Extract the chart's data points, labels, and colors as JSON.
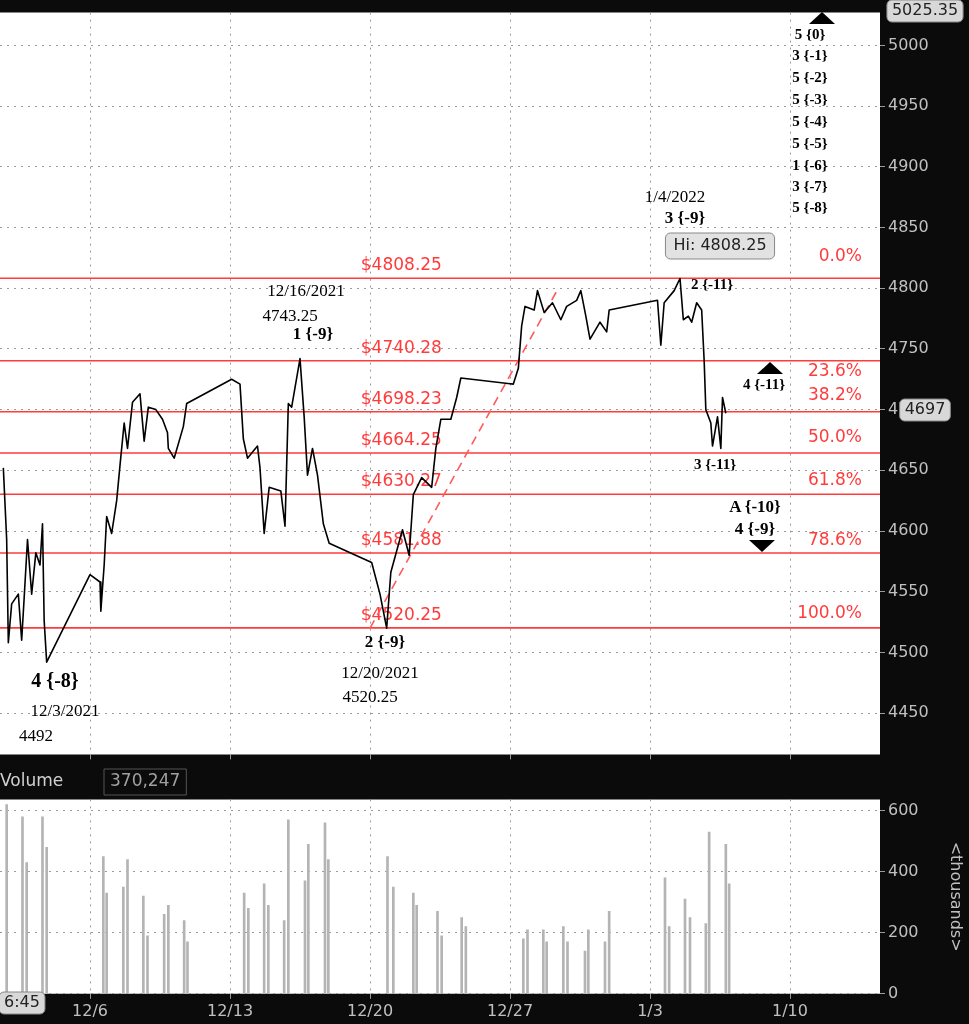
{
  "chart_data": [
    {
      "type": "line",
      "xlim": [
        "2021-12-01T12:00",
        "2022-01-14T12:00"
      ],
      "ylim": [
        4416,
        5027
      ],
      "grid": true,
      "legend": false,
      "tick_labels": "y",
      "xticks": [
        {
          "value": "2021-12-06",
          "label": null
        },
        {
          "value": "2021-12-13",
          "label": null
        },
        {
          "value": "2021-12-20",
          "label": null
        },
        {
          "value": "2021-12-27",
          "label": null
        },
        {
          "value": "2022-01-03",
          "label": null
        },
        {
          "value": "2022-01-10",
          "label": null
        }
      ],
      "yticks": [
        4450,
        4500,
        4550,
        4600,
        4650,
        4700,
        4750,
        4800,
        4850,
        4900,
        4950,
        5000
      ],
      "series": [
        {
          "type": "line",
          "color": "#000000",
          "x": [
            "2021-12-01T16:00",
            "2021-12-01T20:00",
            "2021-12-01T22:00",
            "2021-12-02T02:00",
            "2021-12-02T10:00",
            "2021-12-02T14:00",
            "2021-12-02T17:00",
            "2021-12-02T21:00",
            "2021-12-03T02:00",
            "2021-12-03T07:00",
            "2021-12-03T12:00",
            "2021-12-03T15:00",
            "2021-12-03T17:00",
            "2021-12-03T20:00",
            "2021-12-06T00:00",
            "2021-12-06T12:00",
            "2021-12-06T13:00",
            "2021-12-06T17:00",
            "2021-12-06T20:00",
            "2021-12-07T02:00",
            "2021-12-07T08:00",
            "2021-12-07T12:00",
            "2021-12-07T17:00",
            "2021-12-07T21:00",
            "2021-12-08T03:00",
            "2021-12-08T12:00",
            "2021-12-08T17:00",
            "2021-12-08T22:00",
            "2021-12-09T07:00",
            "2021-12-09T15:00",
            "2021-12-09T21:00",
            "2021-12-09T22:00",
            "2021-12-10T05:00",
            "2021-12-10T16:00",
            "2021-12-10T20:00",
            "2021-12-13T02:00",
            "2021-12-13T12:00",
            "2021-12-13T16:00",
            "2021-12-13T21:00",
            "2021-12-14T09:00",
            "2021-12-14T12:00",
            "2021-12-14T17:00",
            "2021-12-14T23:00",
            "2021-12-15T13:00",
            "2021-12-15T18:00",
            "2021-12-15T22:00",
            "2021-12-16T02:00",
            "2021-12-16T12:00",
            "2021-12-16T17:00",
            "2021-12-16T21:00",
            "2021-12-17T03:00",
            "2021-12-17T09:00",
            "2021-12-17T16:00",
            "2021-12-17T23:00",
            "2021-12-20T02:00",
            "2021-12-20T12:00",
            "2021-12-20T20:00",
            "2021-12-21T01:00",
            "2021-12-21T15:00",
            "2021-12-21T23:00",
            "2021-12-22T04:00",
            "2021-12-22T14:00",
            "2021-12-23T02:00",
            "2021-12-23T07:00",
            "2021-12-23T13:00",
            "2021-12-24T01:00",
            "2021-12-24T08:00",
            "2021-12-24T13:00",
            "2021-12-27T04:00",
            "2021-12-27T10:00",
            "2021-12-27T14:00",
            "2021-12-27T18:00",
            "2021-12-28T05:00",
            "2021-12-28T09:00",
            "2021-12-28T17:00",
            "2021-12-29T03:00",
            "2021-12-29T13:00",
            "2021-12-29T20:00",
            "2021-12-30T08:00",
            "2021-12-30T13:00",
            "2021-12-30T19:00",
            "2021-12-31T00:00",
            "2021-12-31T12:00",
            "2021-12-31T20:00",
            "2021-12-31T23:00",
            "2022-01-03T09:00",
            "2022-01-03T13:00",
            "2022-01-03T17:00",
            "2022-01-04T05:00",
            "2022-01-04T12:00",
            "2022-01-04T16:00",
            "2022-01-04T22:00",
            "2022-01-05T02:00",
            "2022-01-05T08:00",
            "2022-01-05T14:00",
            "2022-01-05T17:00",
            "2022-01-05T19:00",
            "2022-01-06T01:00",
            "2022-01-06T03:00",
            "2022-01-06T09:00",
            "2022-01-06T13:00",
            "2022-01-06T15:00",
            "2022-01-06T19:00"
          ],
          "values": [
            4652,
            4593,
            4508,
            4540,
            4548,
            4510,
            4545,
            4593,
            4548,
            4582,
            4572,
            4606,
            4526,
            4492,
            4564,
            4558,
            4534,
            4572,
            4612,
            4598,
            4625,
            4654,
            4689,
            4668,
            4706,
            4713,
            4674,
            4702,
            4700,
            4692,
            4681,
            4668,
            4660,
            4686,
            4705,
            4725,
            4721,
            4676,
            4660,
            4670,
            4652,
            4598,
            4636,
            4633,
            4604,
            4705,
            4702,
            4742,
            4694,
            4646,
            4668,
            4646,
            4606,
            4590,
            4574,
            4548,
            4520,
            4566,
            4601,
            4580,
            4630,
            4644,
            4636,
            4668,
            4692,
            4692,
            4710,
            4726,
            4721,
            4734,
            4769,
            4785,
            4782,
            4798,
            4780,
            4788,
            4774,
            4785,
            4790,
            4798,
            4777,
            4758,
            4772,
            4764,
            4782,
            4790,
            4753,
            4788,
            4798,
            4808,
            4774,
            4777,
            4772,
            4788,
            4782,
            4740,
            4700,
            4689,
            4670,
            4694,
            4668,
            4710,
            4697
          ]
        },
        {
          "type": "line",
          "color": "#ff5a5a",
          "line_style": "dashed",
          "x": [
            "2021-12-20T00:00",
            "2021-12-29T10:00"
          ],
          "values": [
            4520,
            4800
          ]
        }
      ],
      "ref_lines": [
        {
          "axis": "y",
          "value": 4808.25,
          "label": "$4808.25",
          "color": "#ff3b3b"
        },
        {
          "axis": "y",
          "value": 4740.28,
          "label": "$4740.28",
          "color": "#ff3b3b"
        },
        {
          "axis": "y",
          "value": 4698.23,
          "label": "$4698.23",
          "color": "#ff3b3b"
        },
        {
          "axis": "y",
          "value": 4664.25,
          "label": "$4664.25",
          "color": "#ff3b3b"
        },
        {
          "axis": "y",
          "value": 4630.27,
          "label": "$4630.27",
          "color": "#ff3b3b"
        },
        {
          "axis": "y",
          "value": 4581.88,
          "label": "$4581.88",
          "color": "#ff3b3b"
        },
        {
          "axis": "y",
          "value": 4520.25,
          "label": "$4520.25",
          "color": "#ff3b3b"
        }
      ],
      "annotations": [
        "12/16/2021",
        "4743.25",
        "1 {-9}",
        "4 {-8}",
        "12/3/2021",
        "4492",
        "2 {-9}",
        "12/20/2021",
        "4520.25",
        "1/4/2022",
        "3 {-9}",
        "Hi: 4808.25",
        "2 {-11}",
        "4 {-11}",
        "3 {-11}",
        "A {-10}",
        "4 {-9}",
        "5 {0}",
        "3 {-1}",
        "5 {-2}",
        "5 {-3}",
        "5 {-4}",
        "5 {-5}",
        "1 {-6}",
        "3 {-7}",
        "5 {-8}",
        "5025.35",
        "4697",
        "0.0%",
        "23.6%",
        "38.2%",
        "50.0%",
        "61.8%",
        "78.6%",
        "100.0%"
      ]
    },
    {
      "type": "bar",
      "title": "Volume",
      "ylabel": "<thousands>",
      "color": "#b4b4b4",
      "xlim": [
        "2021-12-01T12:00",
        "2022-01-14T12:00"
      ],
      "ylim": [
        0,
        637
      ],
      "grid": true,
      "legend": false,
      "xticks": [
        {
          "value": "2021-12-06",
          "label": "12/6"
        },
        {
          "value": "2021-12-13",
          "label": "12/13"
        },
        {
          "value": "2021-12-20",
          "label": "12/20"
        },
        {
          "value": "2021-12-27",
          "label": "12/27"
        },
        {
          "value": "2022-01-03",
          "label": "1/3"
        },
        {
          "value": "2022-01-10",
          "label": "1/10"
        }
      ],
      "yticks": [
        0,
        200,
        400,
        600
      ],
      "x": [
        "2021-12-01T20:00",
        "2021-12-02T15:00",
        "2021-12-02T20:00",
        "2021-12-03T15:00",
        "2021-12-03T20:00",
        "2021-12-06T16:00",
        "2021-12-06T20:00",
        "2021-12-07T16:00",
        "2021-12-07T21:00",
        "2021-12-08T16:00",
        "2021-12-08T21:00",
        "2021-12-09T17:00",
        "2021-12-09T22:00",
        "2021-12-10T17:00",
        "2021-12-10T21:00",
        "2021-12-13T17:00",
        "2021-12-13T22:00",
        "2021-12-14T17:00",
        "2021-12-14T22:00",
        "2021-12-15T17:00",
        "2021-12-15T22:00",
        "2021-12-16T18:00",
        "2021-12-16T22:00",
        "2021-12-17T18:00",
        "2021-12-17T22:00",
        "2021-12-20T21:00",
        "2021-12-21T04:00",
        "2021-12-22T04:00",
        "2021-12-22T08:00",
        "2021-12-23T09:00",
        "2021-12-23T14:00",
        "2021-12-24T14:00",
        "2021-12-24T19:00",
        "2021-12-27T16:00",
        "2021-12-27T21:00",
        "2021-12-28T16:00",
        "2021-12-28T20:00",
        "2021-12-29T16:00",
        "2021-12-29T21:00",
        "2021-12-30T18:00",
        "2021-12-30T22:00",
        "2021-12-31T18:00",
        "2021-12-31T23:00",
        "2022-01-03T18:00",
        "2022-01-03T23:00",
        "2022-01-04T18:00",
        "2022-01-05T00:00",
        "2022-01-05T19:00",
        "2022-01-05T23:00",
        "2022-01-06T19:00",
        "2022-01-06T23:00"
      ],
      "values": [
        620,
        580,
        430,
        580,
        480,
        450,
        330,
        350,
        440,
        320,
        190,
        260,
        290,
        240,
        170,
        330,
        280,
        360,
        290,
        240,
        570,
        370,
        490,
        560,
        440,
        450,
        350,
        330,
        290,
        270,
        190,
        250,
        220,
        180,
        210,
        210,
        170,
        220,
        170,
        140,
        210,
        170,
        270,
        380,
        220,
        310,
        250,
        230,
        530,
        490,
        360
      ],
      "annotations": [
        "370,247",
        "6:45"
      ]
    }
  ]
}
